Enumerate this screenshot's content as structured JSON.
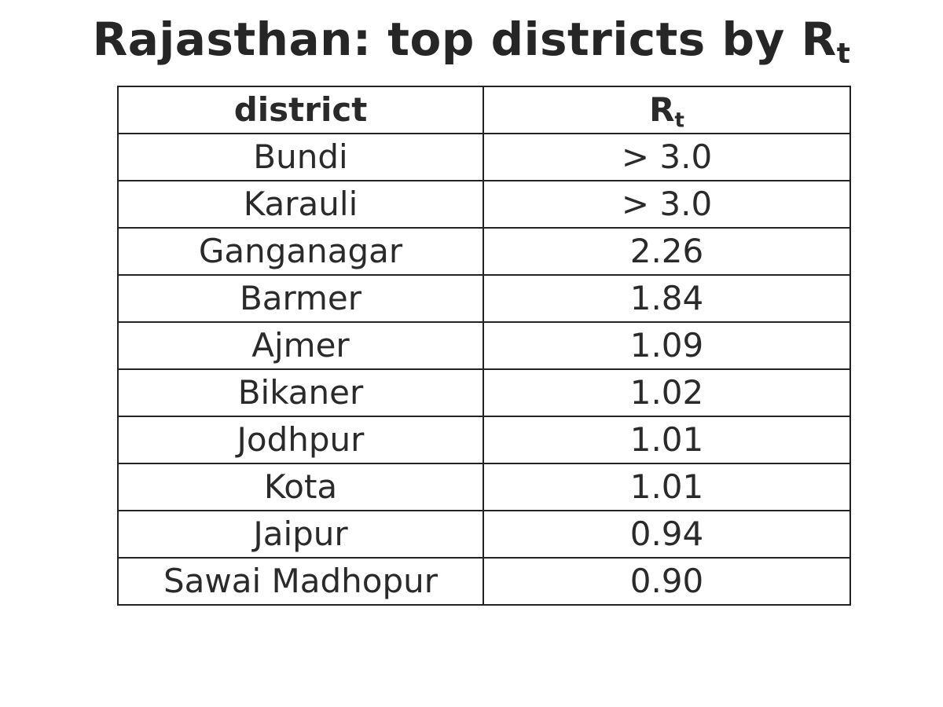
{
  "chart_data": {
    "type": "table",
    "title": {
      "main": "Rajasthan: top districts by R",
      "subscript": "t"
    },
    "columns": [
      {
        "label": "district",
        "subscript": ""
      },
      {
        "label": "R",
        "subscript": "t"
      }
    ],
    "rows": [
      {
        "district": "Bundi",
        "rt": "> 3.0"
      },
      {
        "district": "Karauli",
        "rt": "> 3.0"
      },
      {
        "district": "Ganganagar",
        "rt": "2.26"
      },
      {
        "district": "Barmer",
        "rt": "1.84"
      },
      {
        "district": "Ajmer",
        "rt": "1.09"
      },
      {
        "district": "Bikaner",
        "rt": "1.02"
      },
      {
        "district": "Jodhpur",
        "rt": "1.01"
      },
      {
        "district": "Kota",
        "rt": "1.01"
      },
      {
        "district": "Jaipur",
        "rt": "0.94"
      },
      {
        "district": "Sawai Madhopur",
        "rt": "0.90"
      }
    ]
  }
}
